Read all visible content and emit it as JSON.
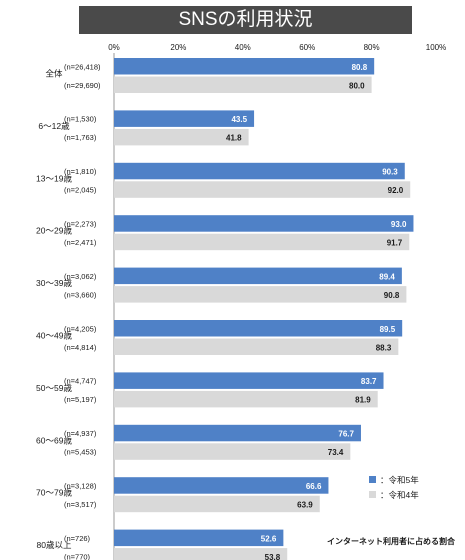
{
  "title": "SNSの利用状況",
  "legend": {
    "r5": "：令和5年",
    "r4": "：令和4年"
  },
  "footnote": "インターネット利用者に占める割合",
  "colors": {
    "r5": "#4f81c7",
    "r4": "#d9d9d9",
    "r5_label": "#ffffff",
    "r4_label": "#1a1a1a"
  },
  "chart_data": {
    "type": "bar",
    "orientation": "horizontal",
    "title": "SNSの利用状況",
    "x_tick_labels": [
      "0%",
      "20%",
      "40%",
      "60%",
      "80%",
      "100%"
    ],
    "xlim": [
      0,
      100
    ],
    "legend_position": "bottom-right",
    "categories": [
      "全体",
      "6～12歳",
      "13～19歳",
      "20～29歳",
      "30～39歳",
      "40～49歳",
      "50～59歳",
      "60～69歳",
      "70～79歳",
      "80歳以上"
    ],
    "series": [
      {
        "name": "令和5年",
        "values": [
          80.8,
          43.5,
          90.3,
          93.0,
          89.4,
          89.5,
          83.7,
          76.7,
          66.6,
          52.6
        ],
        "n": [
          "(n=26,418)",
          "(n=1,530)",
          "(n=1,810)",
          "(n=2,273)",
          "(n=3,062)",
          "(n=4,205)",
          "(n=4,747)",
          "(n=4,937)",
          "(n=3,128)",
          "(n=726)"
        ]
      },
      {
        "name": "令和4年",
        "values": [
          80.0,
          41.8,
          92.0,
          91.7,
          90.8,
          88.3,
          81.9,
          73.4,
          63.9,
          53.8
        ],
        "n": [
          "(n=29,690)",
          "(n=1,763)",
          "(n=2,045)",
          "(n=2,471)",
          "(n=3,660)",
          "(n=4,814)",
          "(n=5,197)",
          "(n=5,453)",
          "(n=3,517)",
          "(n=770)"
        ]
      }
    ]
  }
}
